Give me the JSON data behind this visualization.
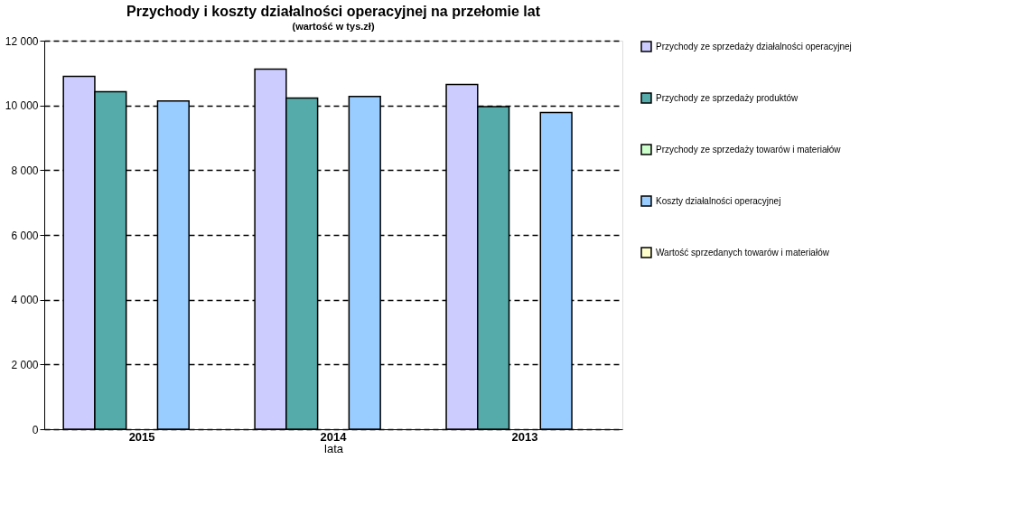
{
  "chart_data": {
    "type": "bar",
    "title": "Przychody i koszty działalności operacyjnej na przełomie lat",
    "subtitle": "(wartość w tys.zł)",
    "xlabel": "lata",
    "categories": [
      "2015",
      "2014",
      "2013"
    ],
    "series": [
      {
        "name": "Przychody ze sprzedaży działalności operacyjnej",
        "color": "#ccccff",
        "values": [
          10900,
          11120,
          10650
        ]
      },
      {
        "name": "Przychody ze sprzedaży produktów",
        "color": "#55aaaa",
        "values": [
          10420,
          10230,
          9960
        ]
      },
      {
        "name": "Przychody ze sprzedaży towarów i materiałów",
        "color": "#ccffcc",
        "values": [
          null,
          null,
          null
        ]
      },
      {
        "name": "Koszty działalności operacyjnej",
        "color": "#99ccff",
        "values": [
          10140,
          10280,
          9780
        ]
      },
      {
        "name": "Wartość sprzedanych towarów i materiałów",
        "color": "#ffffcc",
        "values": [
          null,
          null,
          null
        ]
      }
    ],
    "ylim": [
      0,
      12000
    ],
    "yticks": [
      {
        "value": 0,
        "label": "0"
      },
      {
        "value": 2000,
        "label": "2 000"
      },
      {
        "value": 4000,
        "label": "4 000"
      },
      {
        "value": 6000,
        "label": "6 000"
      },
      {
        "value": 8000,
        "label": "8 000"
      },
      {
        "value": 10000,
        "label": "10 000"
      },
      {
        "value": 12000,
        "label": "12 000"
      }
    ],
    "grid": "y",
    "legend": "right"
  }
}
